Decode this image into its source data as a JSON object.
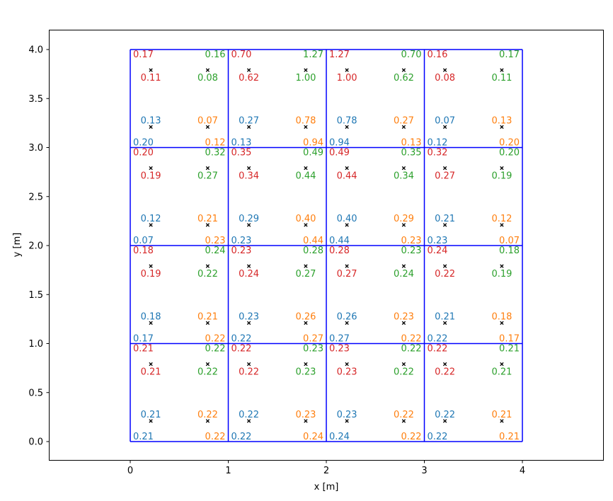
{
  "chart_data": {
    "type": "scatter",
    "xlabel": "x [m]",
    "ylabel": "y [m]",
    "xlim": [
      -0.83,
      4.83
    ],
    "ylim": [
      -0.19,
      4.19
    ],
    "xticks": [
      "0",
      "1",
      "2",
      "3",
      "4"
    ],
    "yticks": [
      "0.0",
      "0.5",
      "1.0",
      "1.5",
      "2.0",
      "2.5",
      "3.0",
      "3.5",
      "4.0"
    ],
    "grid": false,
    "colors": {
      "cell_edges": "#0000ff",
      "markers": "#000000",
      "bottom_left": "#1f77b4",
      "bottom_right": "#ff7f0e",
      "top_right": "#2ca02c",
      "top_left": "#d62728"
    },
    "grid_lines": {
      "x": [
        0,
        1,
        2,
        3,
        4
      ],
      "y": [
        0,
        1,
        2,
        3,
        4
      ]
    },
    "markers": {
      "x": [
        0.21,
        0.79
      ],
      "y": [
        0.21,
        0.79
      ]
    },
    "cells": [
      {
        "i": 0,
        "j": 0,
        "cbl": "0.21",
        "cbr": "0.22",
        "ctr": "0.22",
        "ctl": "0.21",
        "ibl": "0.21",
        "ibr": "0.22",
        "itr": "0.22",
        "itl": "0.21"
      },
      {
        "i": 1,
        "j": 0,
        "cbl": "0.22",
        "cbr": "0.24",
        "ctr": "0.23",
        "ctl": "0.22",
        "ibl": "0.22",
        "ibr": "0.23",
        "itr": "0.23",
        "itl": "0.22"
      },
      {
        "i": 2,
        "j": 0,
        "cbl": "0.24",
        "cbr": "0.22",
        "ctr": "0.22",
        "ctl": "0.23",
        "ibl": "0.23",
        "ibr": "0.22",
        "itr": "0.22",
        "itl": "0.23"
      },
      {
        "i": 3,
        "j": 0,
        "cbl": "0.22",
        "cbr": "0.21",
        "ctr": "0.21",
        "ctl": "0.22",
        "ibl": "0.22",
        "ibr": "0.21",
        "itr": "0.21",
        "itl": "0.22"
      },
      {
        "i": 0,
        "j": 1,
        "cbl": "0.17",
        "cbr": "0.22",
        "ctr": "0.24",
        "ctl": "0.18",
        "ibl": "0.18",
        "ibr": "0.21",
        "itr": "0.22",
        "itl": "0.19"
      },
      {
        "i": 1,
        "j": 1,
        "cbl": "0.22",
        "cbr": "0.27",
        "ctr": "0.28",
        "ctl": "0.23",
        "ibl": "0.23",
        "ibr": "0.26",
        "itr": "0.27",
        "itl": "0.24"
      },
      {
        "i": 2,
        "j": 1,
        "cbl": "0.27",
        "cbr": "0.22",
        "ctr": "0.23",
        "ctl": "0.28",
        "ibl": "0.26",
        "ibr": "0.23",
        "itr": "0.24",
        "itl": "0.27"
      },
      {
        "i": 3,
        "j": 1,
        "cbl": "0.22",
        "cbr": "0.17",
        "ctr": "0.18",
        "ctl": "0.24",
        "ibl": "0.21",
        "ibr": "0.18",
        "itr": "0.19",
        "itl": "0.22"
      },
      {
        "i": 0,
        "j": 2,
        "cbl": "0.07",
        "cbr": "0.23",
        "ctr": "0.32",
        "ctl": "0.20",
        "ibl": "0.12",
        "ibr": "0.21",
        "itr": "0.27",
        "itl": "0.19"
      },
      {
        "i": 1,
        "j": 2,
        "cbl": "0.23",
        "cbr": "0.44",
        "ctr": "0.49",
        "ctl": "0.35",
        "ibl": "0.29",
        "ibr": "0.40",
        "itr": "0.44",
        "itl": "0.34"
      },
      {
        "i": 2,
        "j": 2,
        "cbl": "0.44",
        "cbr": "0.23",
        "ctr": "0.35",
        "ctl": "0.49",
        "ibl": "0.40",
        "ibr": "0.29",
        "itr": "0.34",
        "itl": "0.44"
      },
      {
        "i": 3,
        "j": 2,
        "cbl": "0.23",
        "cbr": "0.07",
        "ctr": "0.20",
        "ctl": "0.32",
        "ibl": "0.21",
        "ibr": "0.12",
        "itr": "0.19",
        "itl": "0.27"
      },
      {
        "i": 0,
        "j": 3,
        "cbl": "0.20",
        "cbr": "0.12",
        "ctr": "0.16",
        "ctl": "0.17",
        "ibl": "0.13",
        "ibr": "0.07",
        "itr": "0.08",
        "itl": "0.11"
      },
      {
        "i": 1,
        "j": 3,
        "cbl": "0.13",
        "cbr": "0.94",
        "ctr": "1.27",
        "ctl": "0.70",
        "ibl": "0.27",
        "ibr": "0.78",
        "itr": "1.00",
        "itl": "0.62"
      },
      {
        "i": 2,
        "j": 3,
        "cbl": "0.94",
        "cbr": "0.13",
        "ctr": "0.70",
        "ctl": "1.27",
        "ibl": "0.78",
        "ibr": "0.27",
        "itr": "0.62",
        "itl": "1.00"
      },
      {
        "i": 3,
        "j": 3,
        "cbl": "0.12",
        "cbr": "0.20",
        "ctr": "0.17",
        "ctl": "0.16",
        "ibl": "0.07",
        "ibr": "0.13",
        "itr": "0.11",
        "itl": "0.08"
      }
    ]
  }
}
